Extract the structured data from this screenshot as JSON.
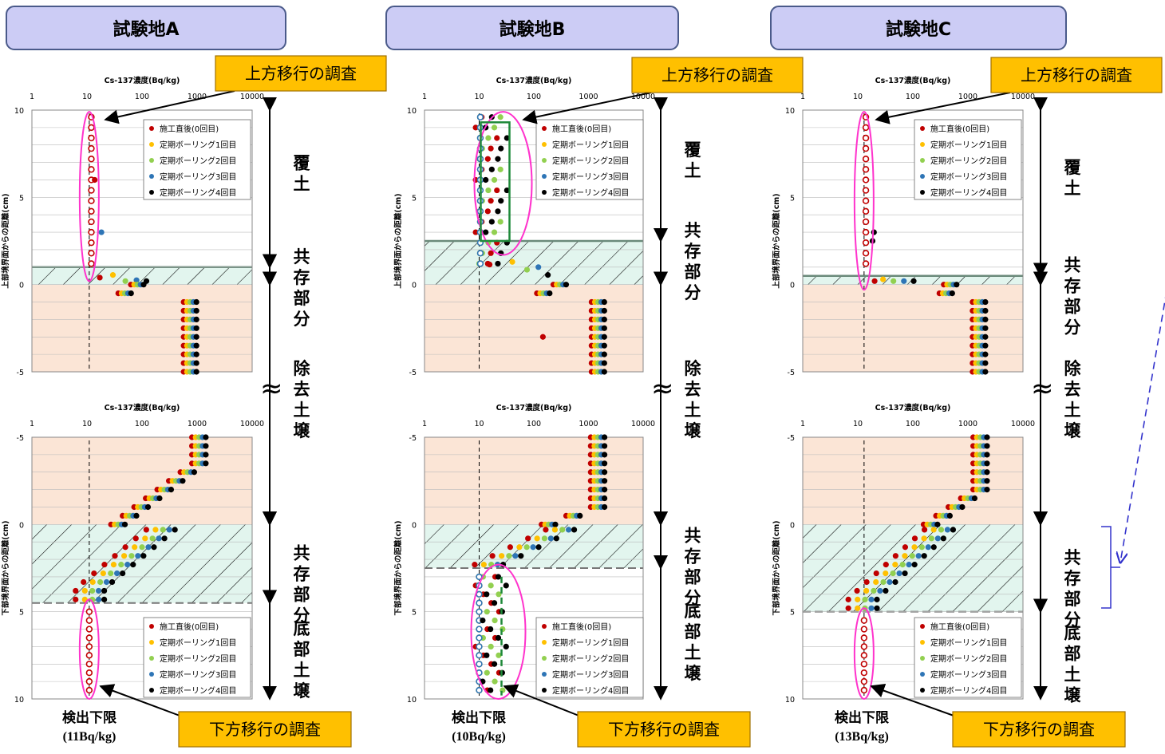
{
  "xaxis_title": "Cs-137濃度(Bq/kg)",
  "y_title_upper": "上部境界面からの距離(cm)",
  "y_title_lower": "下部境界面からの距離(cm)",
  "x_ticks": [
    1,
    10,
    100,
    1000,
    10000
  ],
  "upper_y_ticks": [
    10,
    5,
    0,
    -5
  ],
  "lower_y_ticks": [
    -5,
    0,
    5,
    10
  ],
  "zone_labels": {
    "cover": "覆土",
    "coexist": "共存部分",
    "removed": "除去土壌",
    "bottom": "底部土壌"
  },
  "callouts": {
    "upward": "上方移行の調査",
    "downward": "下方移行の調査",
    "detection_limit": "検出下限"
  },
  "legend": [
    {
      "label": "施工直後(0回目)",
      "color": "#C00000"
    },
    {
      "label": "定期ボーリング1回目",
      "color": "#FFC000"
    },
    {
      "label": "定期ボーリング2回目",
      "color": "#92D050"
    },
    {
      "label": "定期ボーリング3回目",
      "color": "#2E75B6"
    },
    {
      "label": "定期ボーリング4回目",
      "color": "#000000"
    }
  ],
  "colors": {
    "header_fill": "#CCCCF5",
    "callout_fill": "#FFC000",
    "soil_fill": "#FBE5D6",
    "coexist_fill": "#E2F5EE",
    "ellipse": "#FF33CC"
  },
  "chart_data": [
    {
      "title": "試験地A",
      "type": "scatter",
      "detection_limit_label": "(11Bq/kg)",
      "detection_limit": 11,
      "upper": {
        "ylim": [
          -5,
          10
        ],
        "coexist_top": 1.0,
        "cover": "low",
        "soil": "A",
        "outliers": [
          {
            "s": 0,
            "x": 16,
            "y": 6
          },
          {
            "s": 3,
            "x": 17,
            "y": 3
          }
        ]
      },
      "lower": {
        "ylim": [
          -5,
          10
        ],
        "coexist_bottom": 4.5,
        "soil": "A",
        "coexist": "A",
        "bottom": "low"
      }
    },
    {
      "title": "試験地B",
      "type": "scatter",
      "detection_limit_label": "(10Bq/kg)",
      "detection_limit": 10,
      "upper": {
        "ylim": [
          -5,
          10
        ],
        "coexist_top": 2.5,
        "cover": "spread",
        "soil": "B",
        "outliers": [
          {
            "s": 0,
            "x": 170,
            "y": -3
          }
        ]
      },
      "lower": {
        "ylim": [
          -5,
          10
        ],
        "coexist_bottom": 2.5,
        "soil": "B",
        "coexist": "B",
        "bottom": "spread"
      }
    },
    {
      "title": "試験地C",
      "type": "scatter",
      "detection_limit_label": "(13Bq/kg)",
      "detection_limit": 13,
      "upper": {
        "ylim": [
          -5,
          10
        ],
        "coexist_top": 0.5,
        "cover": "low",
        "soil": "C",
        "outliers": [
          {
            "s": 4,
            "x": 17,
            "y": 3
          },
          {
            "s": 4,
            "x": 16,
            "y": 2.5
          }
        ]
      },
      "lower": {
        "ylim": [
          -5,
          10
        ],
        "coexist_bottom": 5.0,
        "soil": "C",
        "coexist": "C",
        "bottom": "low"
      }
    }
  ]
}
